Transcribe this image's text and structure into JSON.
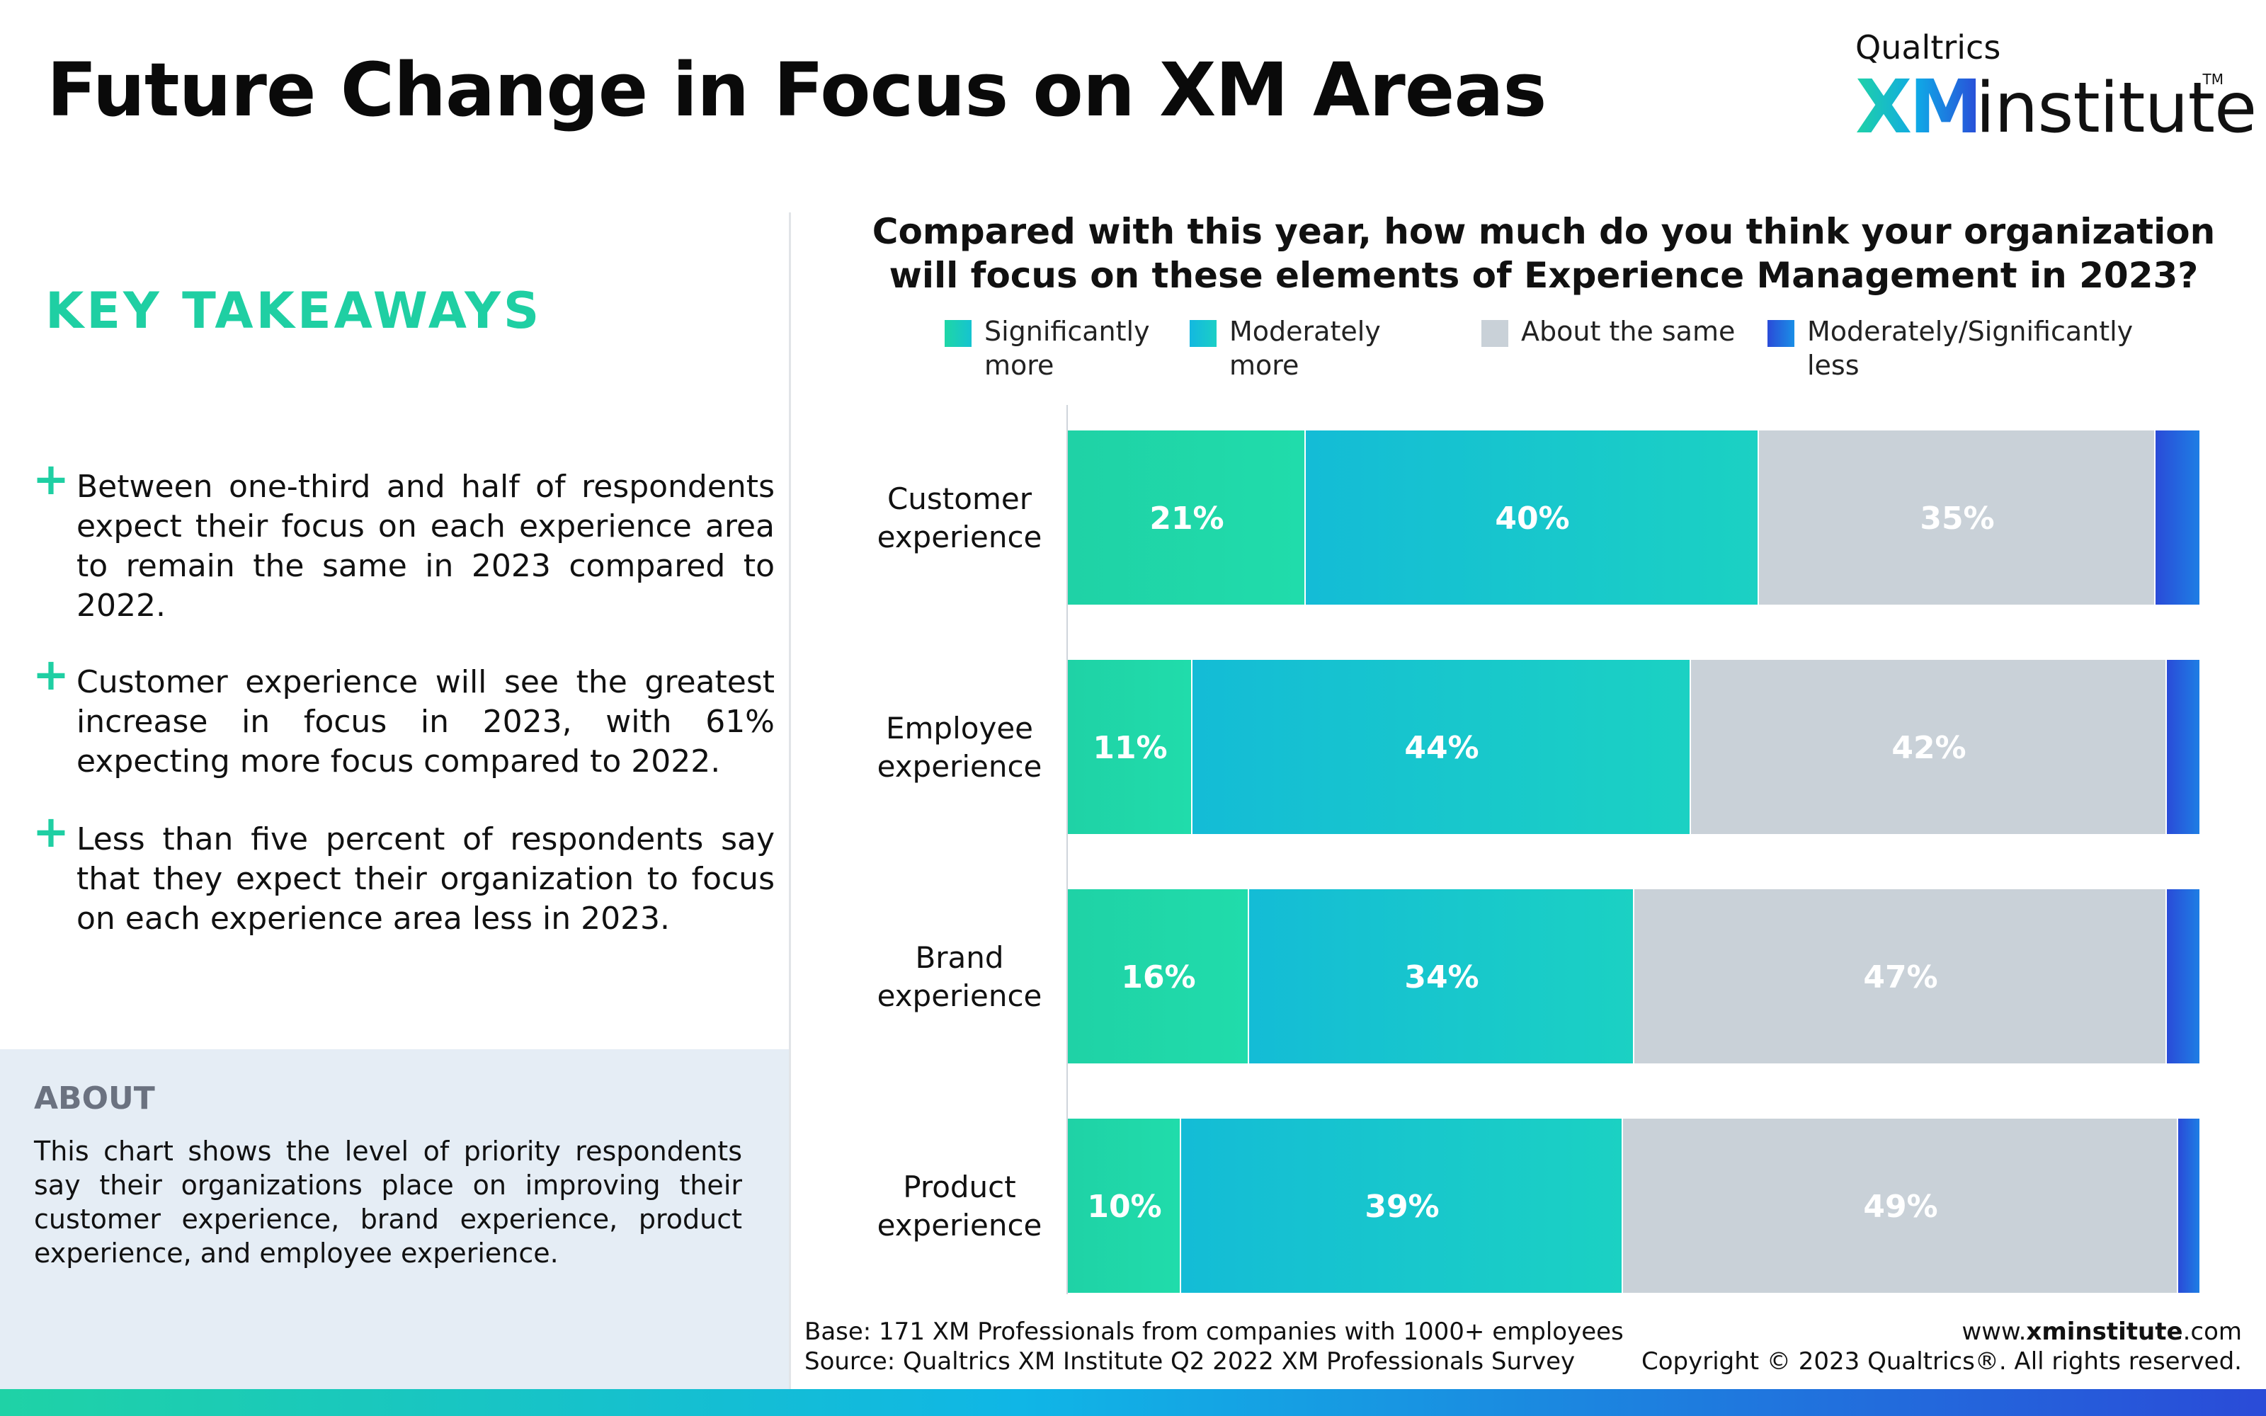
{
  "header": {
    "title": "Future Change in Focus on XM Areas",
    "brand_top": "Qualtrics",
    "brand_xm": "XM",
    "brand_institute": "institute",
    "brand_tm": "TM"
  },
  "takeaways": {
    "title": "KEY TAKEAWAYS",
    "items": [
      "Between one-third and half of respondents expect their focus on each experience area to remain the same in 2023 compared to 2022.",
      "Customer experience will see the greatest increase in focus in 2023, with 61% expecting more focus compared to 2022.",
      "Less than five percent of respondents say that they expect their organization to focus on each experience area less in 2023."
    ]
  },
  "about": {
    "title": "ABOUT",
    "text": "This chart shows the level of priority respondents say their organizations place on improving their customer experience, brand experience, product experience, and employee experience."
  },
  "chart_data": {
    "type": "bar",
    "orientation": "horizontal-stacked-100",
    "title": "Compared with this year, how much do you think your organization will focus on these elements of Experience Management in 2023?",
    "categories": [
      "Customer experience",
      "Employee experience",
      "Brand experience",
      "Product experience"
    ],
    "series": [
      {
        "name": "Significantly more",
        "color": "#1fd7a6",
        "values": [
          21,
          11,
          16,
          10
        ],
        "labels": [
          "21%",
          "11%",
          "16%",
          "10%"
        ]
      },
      {
        "name": "Moderately more",
        "color": "#15c3d0",
        "values": [
          40,
          44,
          34,
          39
        ],
        "labels": [
          "40%",
          "44%",
          "34%",
          "39%"
        ]
      },
      {
        "name": "About the same",
        "color": "#c9d1d8",
        "values": [
          35,
          42,
          47,
          49
        ],
        "labels": [
          "35%",
          "42%",
          "47%",
          "49%"
        ]
      },
      {
        "name": "Moderately/Significantly less",
        "color": "#2a4bd8",
        "values": [
          4,
          3,
          3,
          2
        ]
      }
    ],
    "xlim": [
      0,
      100
    ],
    "legend_position": "top"
  },
  "footer": {
    "base": "Base: 171 XM Professionals from companies with 1000+ employees",
    "source": "Source: Qualtrics XM Institute Q2 2022 XM Professionals Survey",
    "site_prefix": "www.",
    "site_bold": "xminstitute",
    "site_suffix": ".com",
    "copyright": "Copyright © 2023 Qualtrics®. All rights reserved."
  }
}
